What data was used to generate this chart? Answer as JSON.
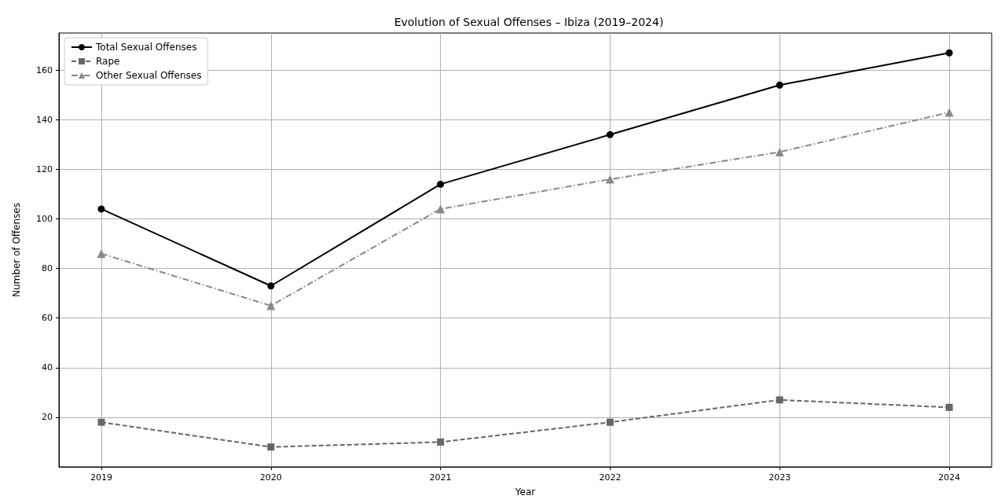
{
  "chart_data": {
    "type": "line",
    "title": "Evolution of Sexual Offenses – Ibiza (2019–2024)",
    "xlabel": "Year",
    "ylabel": "Number of Offenses",
    "x": [
      2019,
      2020,
      2021,
      2022,
      2023,
      2024
    ],
    "series": [
      {
        "name": "Total Sexual Offenses",
        "color": "#000000",
        "values": [
          104,
          73,
          114,
          134,
          154,
          167
        ],
        "marker": "circle",
        "line_style": "solid"
      },
      {
        "name": "Rape",
        "color": "#666666",
        "values": [
          18,
          8,
          10,
          18,
          27,
          24
        ],
        "marker": "square",
        "line_style": "dashed"
      },
      {
        "name": "Other Sexual Offenses",
        "color": "#888888",
        "values": [
          86,
          65,
          104,
          116,
          127,
          143
        ],
        "marker": "triangle",
        "line_style": "dashdot"
      }
    ],
    "xlim": [
      2018.75,
      2024.25
    ],
    "xticks": [
      2019,
      2020,
      2021,
      2022,
      2023,
      2024
    ],
    "ylim": [
      0,
      175
    ],
    "yticks": [
      20,
      40,
      60,
      80,
      100,
      120,
      140,
      160
    ],
    "grid": true,
    "legend": "top left"
  }
}
